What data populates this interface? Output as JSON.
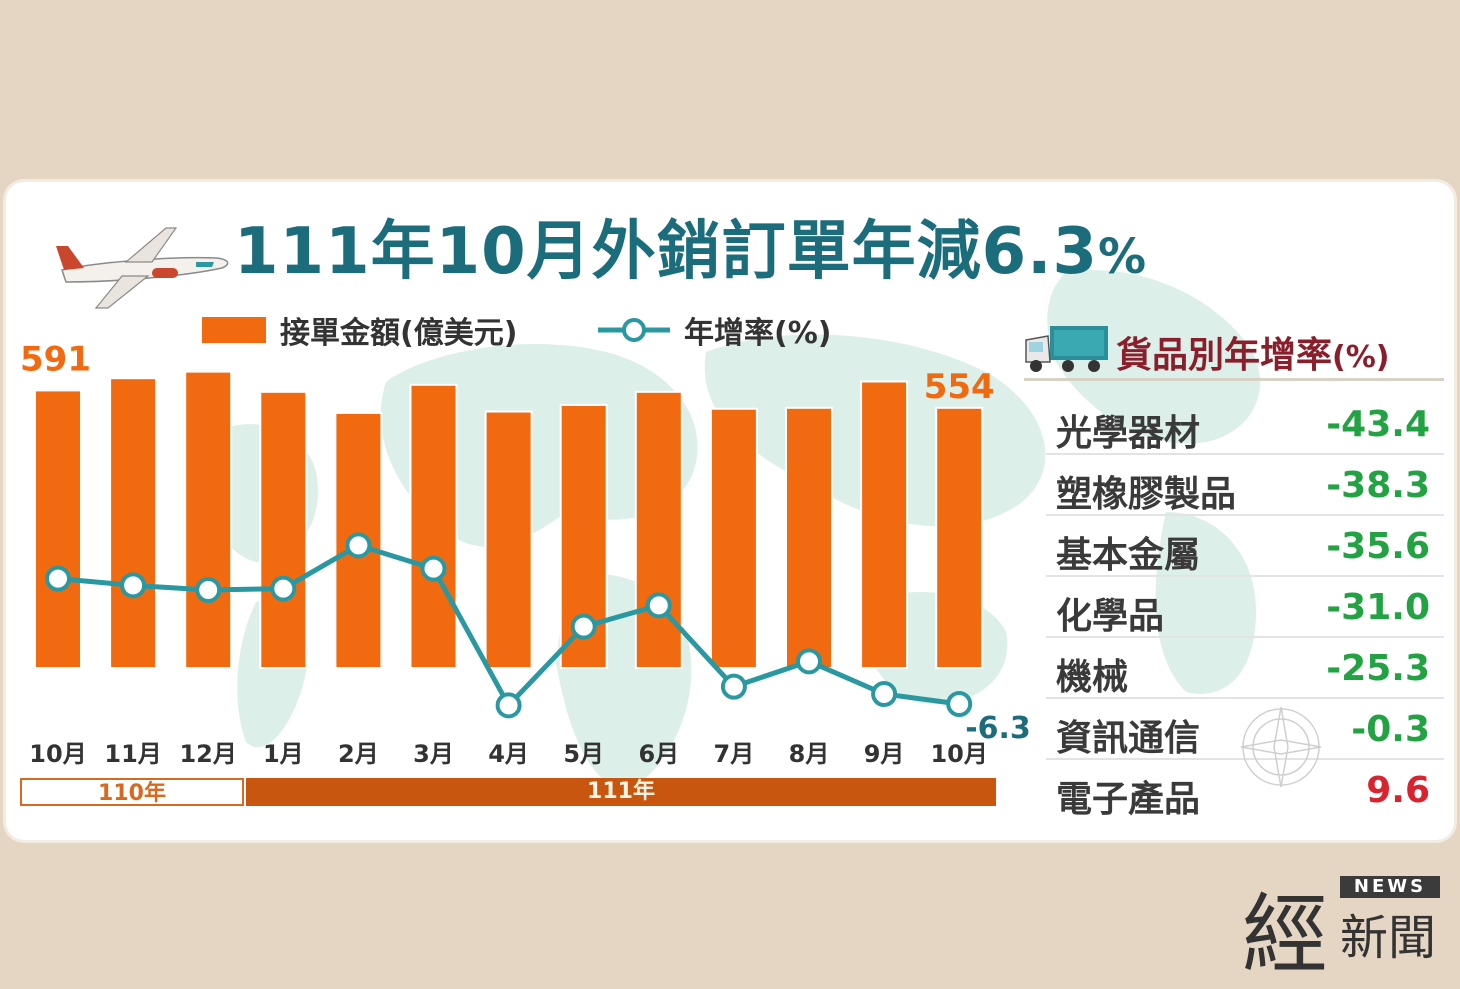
{
  "title": {
    "main": "111年10月外銷訂單年減6.3",
    "pct": "%"
  },
  "legend": {
    "bar": "接單金額(億美元)",
    "line": "年增率(%)"
  },
  "periods": {
    "y110": "110年",
    "y111": "111年"
  },
  "panel": {
    "title_main": "貨品別年增率",
    "title_pct": "(%)",
    "rows": [
      {
        "name": "光學器材",
        "value": "-43.4"
      },
      {
        "name": "塑橡膠製品",
        "value": "-38.3"
      },
      {
        "name": "基本金屬",
        "value": "-35.6"
      },
      {
        "name": "化學品",
        "value": "-31.0"
      },
      {
        "name": "機械",
        "value": "-25.3"
      },
      {
        "name": "資訊通信",
        "value": "-0.3"
      },
      {
        "name": "電子產品",
        "value": "9.6"
      }
    ]
  },
  "colors": {
    "bar": "#f26a0f",
    "line": "#2a98a0",
    "negative": "#22a242",
    "positive": "#d9232f",
    "title": "#1c6d7b",
    "label": "#f26a0f",
    "line_label": "#1c6d7b"
  },
  "logo": {
    "jing": "經",
    "news": "NEWS",
    "xinwen": "新聞"
  },
  "chart_data": {
    "type": "bar",
    "categories": [
      "10月",
      "11月",
      "12月",
      "1月",
      "2月",
      "3月",
      "4月",
      "5月",
      "6月",
      "7月",
      "8月",
      "9月",
      "10月"
    ],
    "series": [
      {
        "name": "接單金額(億美元)",
        "type": "bar",
        "values": [
          591,
          617,
          631,
          588,
          543,
          603,
          546,
          560,
          588,
          552,
          554,
          610,
          554
        ]
      },
      {
        "name": "年增率(%)",
        "type": "line",
        "values": [
          12.5,
          11.5,
          10.8,
          11.0,
          17.5,
          14.0,
          -6.5,
          5.3,
          8.5,
          -3.7,
          0.1,
          -4.8,
          -6.3
        ]
      }
    ],
    "labels": {
      "first_bar": "591",
      "last_bar": "554",
      "last_line": "-6.3"
    },
    "bar_ylim": [
      0,
      660
    ],
    "line_ylim": [
      -15,
      30
    ],
    "legend": "top"
  }
}
